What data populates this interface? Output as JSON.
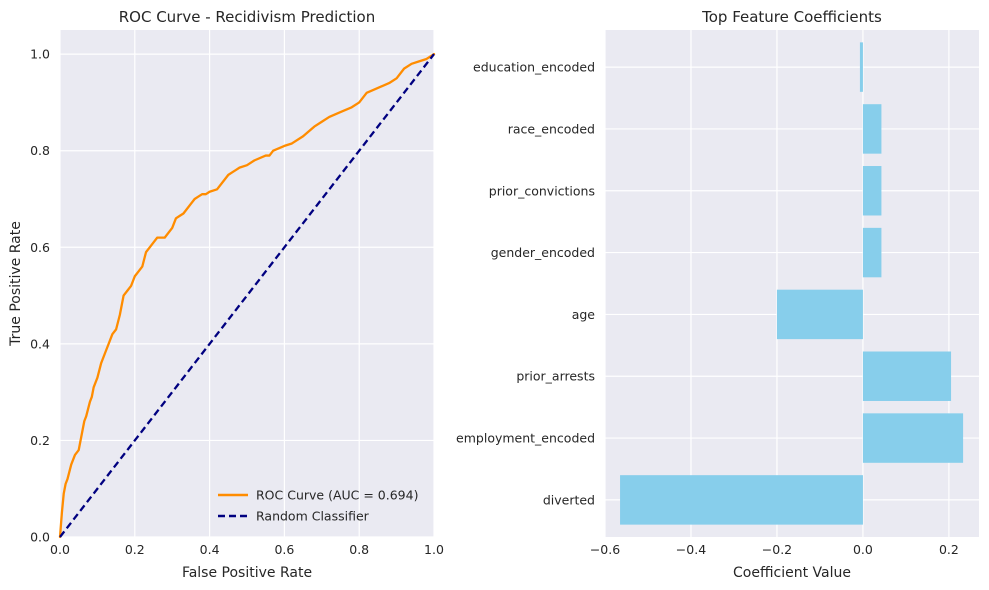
{
  "chart_data": [
    {
      "type": "line",
      "title": "ROC Curve - Recidivism Prediction",
      "xlabel": "False Positive Rate",
      "ylabel": "True Positive Rate",
      "xlim": [
        0,
        1.0
      ],
      "ylim": [
        0,
        1.05
      ],
      "xticks": [
        "0.0",
        "0.2",
        "0.4",
        "0.6",
        "0.8",
        "1.0"
      ],
      "yticks": [
        "0.0",
        "0.2",
        "0.4",
        "0.6",
        "0.8",
        "1.0"
      ],
      "grid": true,
      "legend_position": "lower-right",
      "series": [
        {
          "name": "ROC Curve (AUC = 0.694)",
          "color": "#ff8c00",
          "style": "solid",
          "x": [
            0.0,
            0.005,
            0.01,
            0.015,
            0.02,
            0.03,
            0.04,
            0.05,
            0.06,
            0.065,
            0.07,
            0.08,
            0.085,
            0.09,
            0.1,
            0.11,
            0.12,
            0.13,
            0.14,
            0.15,
            0.16,
            0.17,
            0.18,
            0.185,
            0.19,
            0.2,
            0.21,
            0.22,
            0.23,
            0.24,
            0.25,
            0.26,
            0.27,
            0.28,
            0.3,
            0.31,
            0.32,
            0.33,
            0.35,
            0.36,
            0.37,
            0.38,
            0.39,
            0.4,
            0.42,
            0.45,
            0.46,
            0.47,
            0.48,
            0.5,
            0.52,
            0.55,
            0.56,
            0.57,
            0.6,
            0.62,
            0.65,
            0.68,
            0.7,
            0.72,
            0.75,
            0.78,
            0.8,
            0.82,
            0.85,
            0.88,
            0.9,
            0.92,
            0.94,
            0.96,
            0.98,
            1.0
          ],
          "y": [
            0.0,
            0.05,
            0.09,
            0.11,
            0.12,
            0.15,
            0.17,
            0.18,
            0.22,
            0.24,
            0.25,
            0.28,
            0.29,
            0.31,
            0.33,
            0.36,
            0.38,
            0.4,
            0.42,
            0.43,
            0.46,
            0.5,
            0.51,
            0.515,
            0.52,
            0.54,
            0.55,
            0.56,
            0.59,
            0.6,
            0.61,
            0.62,
            0.62,
            0.62,
            0.64,
            0.66,
            0.665,
            0.67,
            0.69,
            0.7,
            0.705,
            0.71,
            0.71,
            0.715,
            0.72,
            0.75,
            0.755,
            0.76,
            0.765,
            0.77,
            0.78,
            0.79,
            0.79,
            0.8,
            0.81,
            0.815,
            0.83,
            0.85,
            0.86,
            0.87,
            0.88,
            0.89,
            0.9,
            0.92,
            0.93,
            0.94,
            0.95,
            0.97,
            0.98,
            0.985,
            0.99,
            1.0
          ]
        },
        {
          "name": "Random Classifier",
          "color": "#000080",
          "style": "dashed",
          "x": [
            0.0,
            1.0
          ],
          "y": [
            0.0,
            1.0
          ]
        }
      ]
    },
    {
      "type": "bar",
      "orientation": "horizontal",
      "title": "Top Feature Coefficients",
      "xlabel": "Coefficient Value",
      "ylabel": "",
      "xlim": [
        -0.6,
        0.27
      ],
      "xticks": [
        "−0.6",
        "−0.4",
        "−0.2",
        "0.0",
        "0.2"
      ],
      "grid": true,
      "bar_color": "#87ceeb",
      "categories": [
        "education_encoded",
        "race_encoded",
        "prior_convictions",
        "gender_encoded",
        "age",
        "prior_arrests",
        "employment_encoded",
        "diverted"
      ],
      "values": [
        -0.007,
        0.043,
        0.043,
        0.043,
        -0.2,
        0.205,
        0.233,
        -0.565
      ]
    }
  ]
}
